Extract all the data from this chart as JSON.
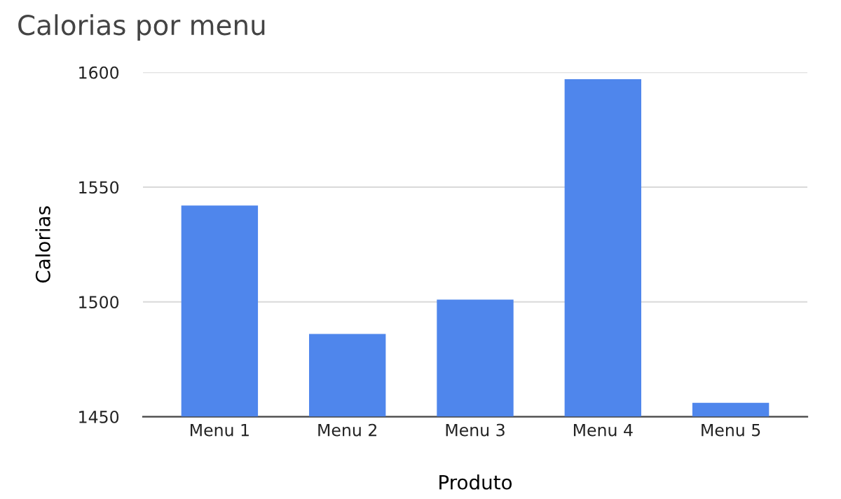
{
  "chart_data": {
    "type": "bar",
    "title": "Calorias por menu",
    "xlabel": "Produto",
    "ylabel": "Calorias",
    "categories": [
      "Menu 1",
      "Menu 2",
      "Menu 3",
      "Menu 4",
      "Menu 5"
    ],
    "values": [
      1542,
      1486,
      1501,
      1597,
      1456
    ],
    "color": "#4f86ec",
    "ylim": [
      1450,
      1600
    ],
    "yticks": [
      1450,
      1500,
      1550,
      1600
    ],
    "grid": "y"
  }
}
